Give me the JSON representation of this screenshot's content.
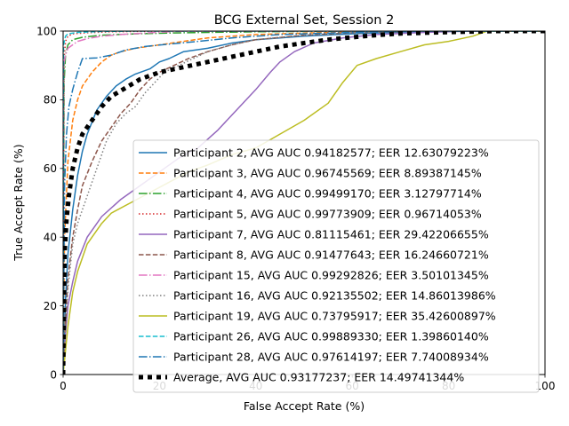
{
  "chart_data": {
    "type": "line",
    "title": "BCG External Set, Session 2",
    "xlabel": "False Accept Rate (%)",
    "ylabel": "True Accept Rate (%)",
    "xlim": [
      0,
      100
    ],
    "ylim": [
      0,
      100
    ],
    "xticks": [
      "0",
      "20",
      "40",
      "60",
      "80",
      "100"
    ],
    "yticks": [
      "0",
      "20",
      "40",
      "60",
      "80",
      "100"
    ],
    "grid": false,
    "legend_position": "lower-right",
    "series": [
      {
        "name": "Participant 2, AVG AUC 0.94182577; EER 12.63079223%",
        "color": "#1f77b4",
        "dash": "solid",
        "points": [
          [
            0,
            0
          ],
          [
            0.5,
            22
          ],
          [
            1,
            35
          ],
          [
            2,
            48
          ],
          [
            3,
            58
          ],
          [
            4,
            65
          ],
          [
            5,
            70
          ],
          [
            7,
            77
          ],
          [
            9,
            81
          ],
          [
            11,
            84
          ],
          [
            13,
            86
          ],
          [
            15,
            87.5
          ],
          [
            18,
            89
          ],
          [
            20,
            91
          ],
          [
            22,
            92
          ],
          [
            25,
            94
          ],
          [
            30,
            95
          ],
          [
            35,
            96.5
          ],
          [
            40,
            97.5
          ],
          [
            50,
            98.5
          ],
          [
            60,
            99.2
          ],
          [
            70,
            99.7
          ],
          [
            80,
            100
          ],
          [
            100,
            100
          ]
        ]
      },
      {
        "name": "Participant 3, AVG AUC 0.96745569; EER 8.89387145%",
        "color": "#ff7f0e",
        "dash": "dashed",
        "points": [
          [
            0,
            0
          ],
          [
            0.3,
            40
          ],
          [
            1,
            62
          ],
          [
            2,
            74
          ],
          [
            3,
            80
          ],
          [
            4,
            84
          ],
          [
            6,
            88
          ],
          [
            8,
            91
          ],
          [
            10,
            93
          ],
          [
            12,
            94
          ],
          [
            15,
            95
          ],
          [
            20,
            96
          ],
          [
            25,
            97
          ],
          [
            30,
            98
          ],
          [
            40,
            99
          ],
          [
            55,
            99.6
          ],
          [
            70,
            100
          ],
          [
            100,
            100
          ]
        ]
      },
      {
        "name": "Participant 4, AVG AUC 0.99499170; EER 3.12797714%",
        "color": "#2ca02c",
        "dash": "dashdot",
        "points": [
          [
            0,
            0
          ],
          [
            0.2,
            85
          ],
          [
            0.5,
            93
          ],
          [
            1,
            96
          ],
          [
            2,
            97.5
          ],
          [
            4,
            98.2
          ],
          [
            8,
            98.8
          ],
          [
            15,
            99.2
          ],
          [
            25,
            99.5
          ],
          [
            40,
            99.8
          ],
          [
            60,
            100
          ],
          [
            100,
            100
          ]
        ]
      },
      {
        "name": "Participant 5, AVG AUC 0.99773909; EER 0.96714053%",
        "color": "#d62728",
        "dash": "dotted",
        "points": [
          [
            0,
            0
          ],
          [
            0.2,
            92
          ],
          [
            0.5,
            97
          ],
          [
            1,
            98.5
          ],
          [
            2,
            99.2
          ],
          [
            5,
            99.5
          ],
          [
            10,
            99.8
          ],
          [
            20,
            100
          ],
          [
            100,
            100
          ]
        ]
      },
      {
        "name": "Participant 7, AVG AUC 0.81115461; EER 29.42206655%",
        "color": "#9467bd",
        "dash": "solid",
        "points": [
          [
            0,
            0
          ],
          [
            0.5,
            12
          ],
          [
            1,
            20
          ],
          [
            2,
            27
          ],
          [
            3,
            33
          ],
          [
            5,
            40
          ],
          [
            8,
            46
          ],
          [
            12,
            51
          ],
          [
            16,
            55
          ],
          [
            20,
            59
          ],
          [
            24,
            63
          ],
          [
            28,
            66
          ],
          [
            32,
            71
          ],
          [
            36,
            77
          ],
          [
            40,
            83
          ],
          [
            43,
            88
          ],
          [
            45,
            91
          ],
          [
            48,
            94
          ],
          [
            52,
            96.5
          ],
          [
            58,
            98
          ],
          [
            65,
            99
          ],
          [
            75,
            99.6
          ],
          [
            85,
            100
          ],
          [
            100,
            100
          ]
        ]
      },
      {
        "name": "Participant 8, AVG AUC 0.91477643; EER 16.24660721%",
        "color": "#8c564b",
        "dash": "dashed",
        "points": [
          [
            0,
            0
          ],
          [
            0.5,
            15
          ],
          [
            1,
            28
          ],
          [
            2,
            40
          ],
          [
            3,
            48
          ],
          [
            4,
            55
          ],
          [
            6,
            62
          ],
          [
            8,
            68
          ],
          [
            10,
            72
          ],
          [
            12,
            76
          ],
          [
            14,
            79
          ],
          [
            16,
            83
          ],
          [
            18,
            86
          ],
          [
            20,
            88
          ],
          [
            23,
            90
          ],
          [
            26,
            92
          ],
          [
            30,
            94
          ],
          [
            35,
            96
          ],
          [
            40,
            97.5
          ],
          [
            50,
            98.8
          ],
          [
            60,
            99.5
          ],
          [
            75,
            100
          ],
          [
            100,
            100
          ]
        ]
      },
      {
        "name": "Participant 15, AVG AUC 0.99292826; EER 3.50101345%",
        "color": "#e377c2",
        "dash": "dashdot",
        "points": [
          [
            0,
            0
          ],
          [
            0.1,
            90
          ],
          [
            0.5,
            93
          ],
          [
            1,
            95
          ],
          [
            2,
            96
          ],
          [
            3,
            97
          ],
          [
            5,
            97.8
          ],
          [
            8,
            98.5
          ],
          [
            12,
            99
          ],
          [
            18,
            99.5
          ],
          [
            25,
            100
          ],
          [
            100,
            100
          ]
        ]
      },
      {
        "name": "Participant 16, AVG AUC 0.92135502; EER 14.86013986%",
        "color": "#7f7f7f",
        "dash": "dotted",
        "points": [
          [
            0,
            0
          ],
          [
            0.5,
            12
          ],
          [
            1,
            25
          ],
          [
            2,
            38
          ],
          [
            3,
            44
          ],
          [
            4,
            48
          ],
          [
            5,
            52
          ],
          [
            7,
            60
          ],
          [
            9,
            68
          ],
          [
            11,
            73
          ],
          [
            13,
            76
          ],
          [
            15,
            78
          ],
          [
            17,
            82
          ],
          [
            19,
            85
          ],
          [
            21,
            88
          ],
          [
            24,
            90
          ],
          [
            27,
            92
          ],
          [
            30,
            94
          ],
          [
            35,
            96
          ],
          [
            40,
            97.5
          ],
          [
            50,
            98.8
          ],
          [
            60,
            99.5
          ],
          [
            70,
            100
          ],
          [
            100,
            100
          ]
        ]
      },
      {
        "name": "Participant 19, AVG AUC 0.73795917; EER 35.42600897%",
        "color": "#bcbd22",
        "dash": "solid",
        "points": [
          [
            0,
            0
          ],
          [
            1,
            14
          ],
          [
            2,
            24
          ],
          [
            3,
            30
          ],
          [
            4,
            34
          ],
          [
            5,
            38
          ],
          [
            6,
            40
          ],
          [
            8,
            44
          ],
          [
            10,
            47
          ],
          [
            14,
            50
          ],
          [
            18,
            53
          ],
          [
            22,
            56
          ],
          [
            26,
            59
          ],
          [
            30,
            61
          ],
          [
            35,
            64
          ],
          [
            40,
            66
          ],
          [
            45,
            70
          ],
          [
            50,
            74
          ],
          [
            55,
            79
          ],
          [
            58,
            85
          ],
          [
            61,
            90
          ],
          [
            65,
            92
          ],
          [
            70,
            94
          ],
          [
            75,
            96
          ],
          [
            80,
            97
          ],
          [
            85,
            98.5
          ],
          [
            88,
            100
          ],
          [
            100,
            100
          ]
        ]
      },
      {
        "name": "Participant 26, AVG AUC 0.99889330; EER 1.39860140%",
        "color": "#17becf",
        "dash": "dashed",
        "points": [
          [
            0,
            0
          ],
          [
            0.1,
            96
          ],
          [
            0.5,
            98.5
          ],
          [
            1,
            99.2
          ],
          [
            3,
            99.6
          ],
          [
            8,
            99.9
          ],
          [
            15,
            100
          ],
          [
            100,
            100
          ]
        ]
      },
      {
        "name": "Participant 28, AVG AUC 0.97614197; EER 7.74008934%",
        "color": "#1f77b4",
        "dash": "dashdot",
        "points": [
          [
            0,
            0
          ],
          [
            0.3,
            55
          ],
          [
            0.7,
            70
          ],
          [
            1.2,
            78
          ],
          [
            2,
            83
          ],
          [
            3,
            88
          ],
          [
            4,
            92
          ],
          [
            7,
            92.2
          ],
          [
            10,
            93
          ],
          [
            13,
            94.5
          ],
          [
            17,
            95.5
          ],
          [
            22,
            96.2
          ],
          [
            28,
            97
          ],
          [
            35,
            98
          ],
          [
            45,
            99
          ],
          [
            60,
            99.6
          ],
          [
            75,
            100
          ],
          [
            100,
            100
          ]
        ]
      },
      {
        "name": "Average, AVG AUC 0.93177237; EER 14.49741344%",
        "color": "#000000",
        "dash": "thick-dotted",
        "points": [
          [
            0,
            0
          ],
          [
            0.3,
            35
          ],
          [
            0.7,
            45
          ],
          [
            1.2,
            52
          ],
          [
            2,
            60
          ],
          [
            3,
            66
          ],
          [
            4,
            70
          ],
          [
            6,
            74
          ],
          [
            8,
            78
          ],
          [
            10,
            81
          ],
          [
            13,
            83.5
          ],
          [
            16,
            86
          ],
          [
            20,
            88
          ],
          [
            25,
            89.5
          ],
          [
            30,
            91
          ],
          [
            35,
            92.5
          ],
          [
            40,
            94
          ],
          [
            45,
            95.5
          ],
          [
            50,
            96.5
          ],
          [
            55,
            97.5
          ],
          [
            60,
            98.2
          ],
          [
            65,
            98.8
          ],
          [
            70,
            99.3
          ],
          [
            80,
            99.7
          ],
          [
            90,
            100
          ],
          [
            100,
            100
          ]
        ]
      }
    ]
  }
}
